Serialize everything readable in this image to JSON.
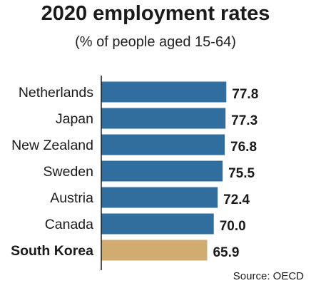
{
  "chart_data": {
    "type": "bar",
    "orientation": "horizontal",
    "title": "2020 employment rates",
    "subtitle": "(% of people aged 15-64)",
    "categories": [
      "Netherlands",
      "Japan",
      "New Zealand",
      "Sweden",
      "Austria",
      "Canada",
      "South Korea"
    ],
    "values": [
      77.8,
      77.3,
      76.8,
      75.5,
      72.4,
      70.0,
      65.9
    ],
    "value_labels": [
      "77.8",
      "77.3",
      "76.8",
      "75.5",
      "72.4",
      "70.0",
      "65.9"
    ],
    "highlight": "South Korea",
    "xlim": [
      0,
      79
    ],
    "colors": {
      "bar": "#2f6e9f",
      "highlight": "#d1ac70",
      "axis": "#1a1a1a"
    },
    "source": "Source: OECD",
    "grid": false,
    "legend": "none"
  }
}
